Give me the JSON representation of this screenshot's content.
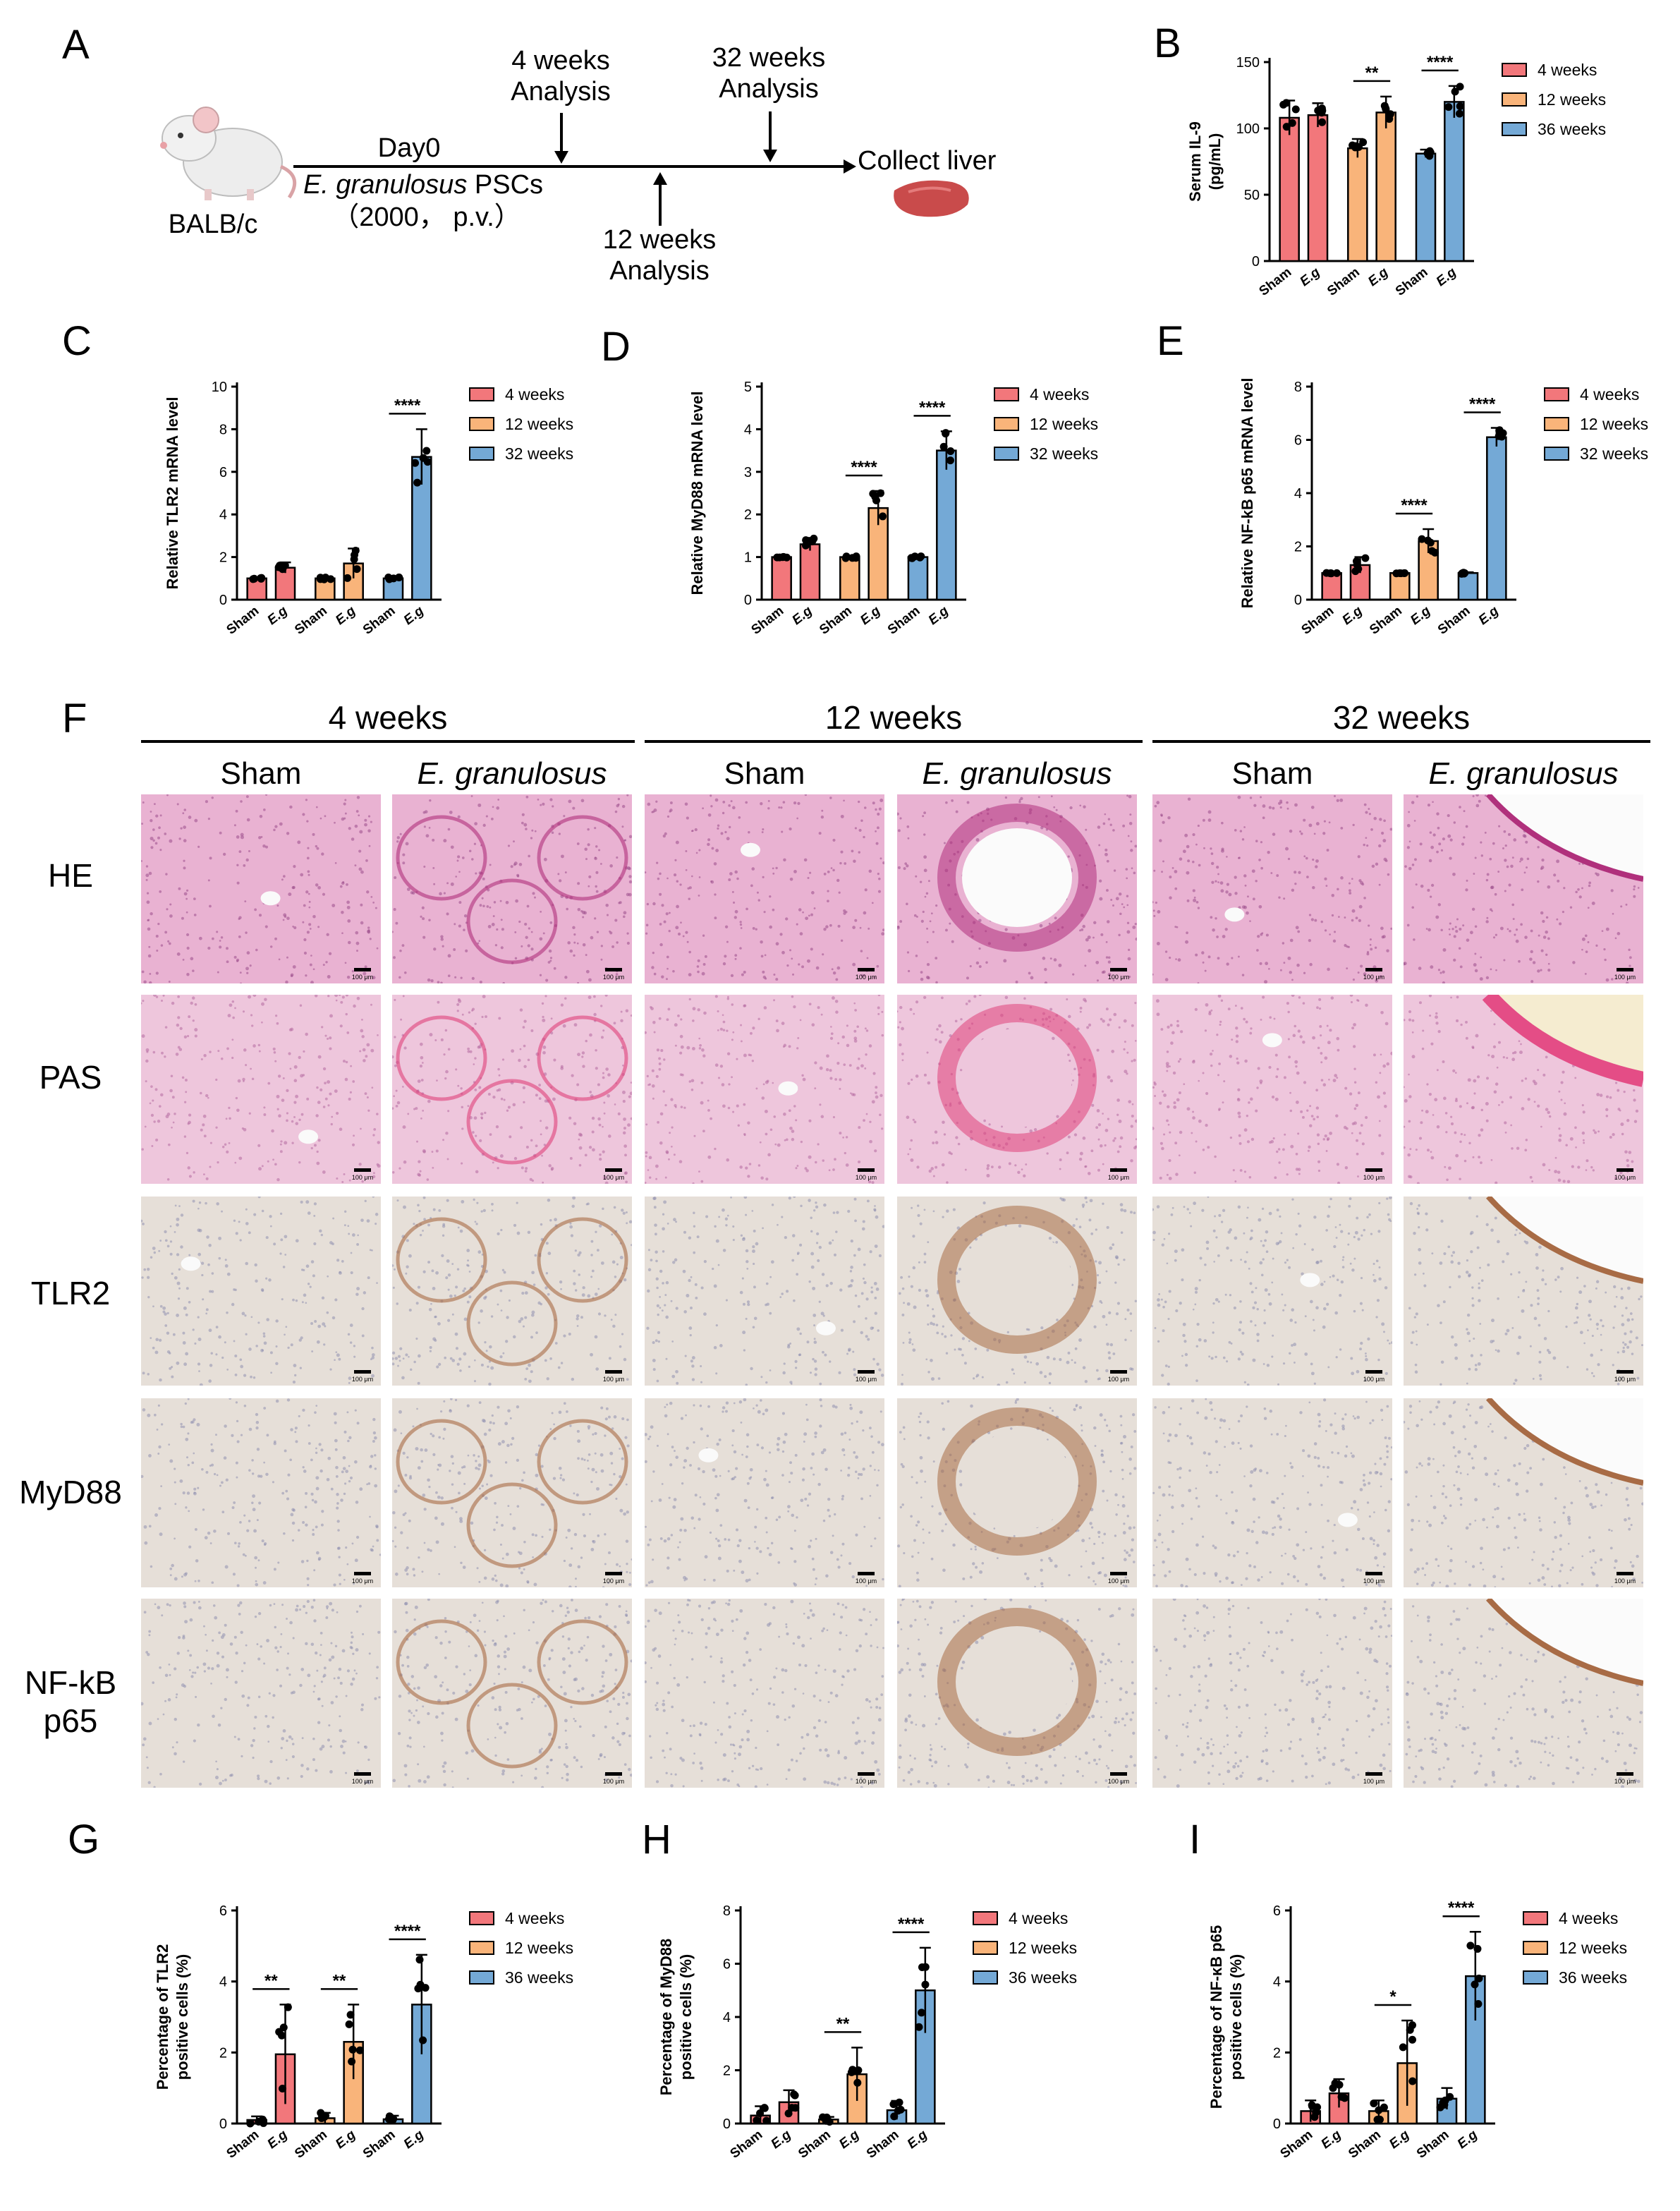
{
  "panels": {
    "A": "A",
    "B": "B",
    "C": "C",
    "D": "D",
    "E": "E",
    "F": "F",
    "G": "G",
    "H": "H",
    "I": "I"
  },
  "timeline": {
    "strain": "BALB/c",
    "day0": "Day0",
    "infection_species": "E. granulosus",
    "infection_suffix": " PSCs",
    "dose": "（2000， p.v.）",
    "t4_line1": "4 weeks",
    "t4_line2": "Analysis",
    "t12_line1": "12 weeks",
    "t12_line2": "Analysis",
    "t32_line1": "32 weeks",
    "t32_line2": "Analysis",
    "end": "Collect liver"
  },
  "histology": {
    "timepoints": [
      "4 weeks",
      "12 weeks",
      "32 weeks"
    ],
    "groups": [
      "Sham",
      "E. granulosus"
    ],
    "stains": [
      "HE",
      "PAS",
      "TLR2",
      "MyD88",
      "NF-kB p65"
    ],
    "scale_bar": "100 μm",
    "colors": {
      "HE": "#e8a8cc",
      "PAS": "#ecc0d8",
      "IHC": "#e4ddd6"
    }
  },
  "chart_data": [
    {
      "id": "B",
      "type": "bar",
      "ylabel_line1": "Serum IL-9",
      "ylabel_line2": "(pg/mL)",
      "ylim": [
        0,
        150
      ],
      "yticks": [
        "0",
        "50",
        "100",
        "150"
      ],
      "categories": [
        "Sham",
        "E.g",
        "Sham",
        "E.g",
        "Sham",
        "E.g"
      ],
      "groups": [
        "4 weeks",
        "12 weeks",
        "36 weeks"
      ],
      "values": [
        108,
        110,
        85,
        112,
        81,
        120
      ],
      "errors": [
        13,
        9,
        7,
        12,
        3,
        12
      ],
      "sig": [
        {
          "pair": 1,
          "label": "**"
        },
        {
          "pair": 2,
          "label": "****"
        }
      ],
      "legend": [
        "4 weeks",
        "12 weeks",
        "36 weeks"
      ],
      "colors": [
        "#f2777b",
        "#f9b47a",
        "#74a9d6"
      ]
    },
    {
      "id": "C",
      "type": "bar",
      "ylabel": "Relative TLR2 mRNA level",
      "ylim": [
        0,
        10
      ],
      "yticks": [
        "0",
        "2",
        "4",
        "6",
        "8",
        "10"
      ],
      "categories": [
        "Sham",
        "E.g",
        "Sham",
        "E.g",
        "Sham",
        "E.g"
      ],
      "values": [
        1.0,
        1.5,
        1.0,
        1.7,
        1.0,
        6.7
      ],
      "errors": [
        0.05,
        0.25,
        0.05,
        0.7,
        0.05,
        1.3
      ],
      "sig": [
        {
          "pair": 2,
          "label": "****"
        }
      ],
      "legend": [
        "4 weeks",
        "12 weeks",
        "32 weeks"
      ],
      "colors": [
        "#f2777b",
        "#f9b47a",
        "#74a9d6"
      ]
    },
    {
      "id": "D",
      "type": "bar",
      "ylabel": "Relative MyD88 mRNA level",
      "ylim": [
        0,
        5
      ],
      "yticks": [
        "0",
        "1",
        "2",
        "3",
        "4",
        "5"
      ],
      "categories": [
        "Sham",
        "E.g",
        "Sham",
        "E.g",
        "Sham",
        "E.g"
      ],
      "values": [
        1.0,
        1.3,
        1.0,
        2.15,
        1.0,
        3.5
      ],
      "errors": [
        0.03,
        0.15,
        0.03,
        0.4,
        0.03,
        0.45
      ],
      "sig": [
        {
          "pair": 1,
          "label": "****"
        },
        {
          "pair": 2,
          "label": "****"
        }
      ],
      "legend": [
        "4 weeks",
        "12 weeks",
        "32 weeks"
      ],
      "colors": [
        "#f2777b",
        "#f9b47a",
        "#74a9d6"
      ]
    },
    {
      "id": "E",
      "type": "bar",
      "ylabel": "Relative NF-kB p65 mRNA level",
      "ylim": [
        0,
        8
      ],
      "yticks": [
        "0",
        "2",
        "4",
        "6",
        "8"
      ],
      "categories": [
        "Sham",
        "E.g",
        "Sham",
        "E.g",
        "Sham",
        "E.g"
      ],
      "values": [
        1.0,
        1.3,
        1.0,
        2.2,
        1.0,
        6.1
      ],
      "errors": [
        0.03,
        0.3,
        0.03,
        0.45,
        0.03,
        0.35
      ],
      "sig": [
        {
          "pair": 1,
          "label": "****"
        },
        {
          "pair": 2,
          "label": "****"
        }
      ],
      "legend": [
        "4 weeks",
        "12 weeks",
        "32 weeks"
      ],
      "colors": [
        "#f2777b",
        "#f9b47a",
        "#74a9d6"
      ]
    },
    {
      "id": "G",
      "type": "bar",
      "ylabel_line1": "Percentage of TLR2",
      "ylabel_line2": "positive cells (%)",
      "ylim": [
        0,
        6
      ],
      "yticks": [
        "0",
        "2",
        "4",
        "6"
      ],
      "categories": [
        "Sham",
        "E.g",
        "Sham",
        "E.g",
        "Sham",
        "E.g"
      ],
      "values": [
        0.1,
        1.95,
        0.15,
        2.3,
        0.12,
        3.35
      ],
      "errors": [
        0.1,
        1.4,
        0.15,
        1.05,
        0.1,
        1.4
      ],
      "sig": [
        {
          "pair": 0,
          "label": "**"
        },
        {
          "pair": 1,
          "label": "**"
        },
        {
          "pair": 2,
          "label": "****"
        }
      ],
      "legend": [
        "4 weeks",
        "12 weeks",
        "36 weeks"
      ],
      "colors": [
        "#f2777b",
        "#f9b47a",
        "#74a9d6"
      ]
    },
    {
      "id": "H",
      "type": "bar",
      "ylabel_line1": "Percentage of MyD88",
      "ylabel_line2": "positive cells (%)",
      "ylim": [
        0,
        8
      ],
      "yticks": [
        "0",
        "2",
        "4",
        "6",
        "8"
      ],
      "categories": [
        "Sham",
        "E.g",
        "Sham",
        "E.g",
        "Sham",
        "E.g"
      ],
      "values": [
        0.3,
        0.8,
        0.15,
        1.85,
        0.5,
        5.0
      ],
      "errors": [
        0.35,
        0.45,
        0.1,
        1.0,
        0.35,
        1.6
      ],
      "sig": [
        {
          "pair": 1,
          "label": "**"
        },
        {
          "pair": 2,
          "label": "****"
        }
      ],
      "legend": [
        "4 weeks",
        "12 weeks",
        "36 weeks"
      ],
      "colors": [
        "#f2777b",
        "#f9b47a",
        "#74a9d6"
      ]
    },
    {
      "id": "I",
      "type": "bar",
      "ylabel_line1": "Percentage of NF-κB p65",
      "ylabel_line2": "positive cells (%)",
      "ylim": [
        0,
        6
      ],
      "yticks": [
        "0",
        "2",
        "4",
        "6"
      ],
      "categories": [
        "Sham",
        "E.g",
        "Sham",
        "E.g",
        "Sham",
        "E.g"
      ],
      "values": [
        0.35,
        0.85,
        0.35,
        1.7,
        0.7,
        4.15
      ],
      "errors": [
        0.3,
        0.4,
        0.3,
        1.2,
        0.3,
        1.25
      ],
      "sig": [
        {
          "pair": 1,
          "label": "*"
        },
        {
          "pair": 2,
          "label": "****"
        }
      ],
      "legend": [
        "4 weeks",
        "12 weeks",
        "36 weeks"
      ],
      "colors": [
        "#f2777b",
        "#f9b47a",
        "#74a9d6"
      ]
    }
  ]
}
